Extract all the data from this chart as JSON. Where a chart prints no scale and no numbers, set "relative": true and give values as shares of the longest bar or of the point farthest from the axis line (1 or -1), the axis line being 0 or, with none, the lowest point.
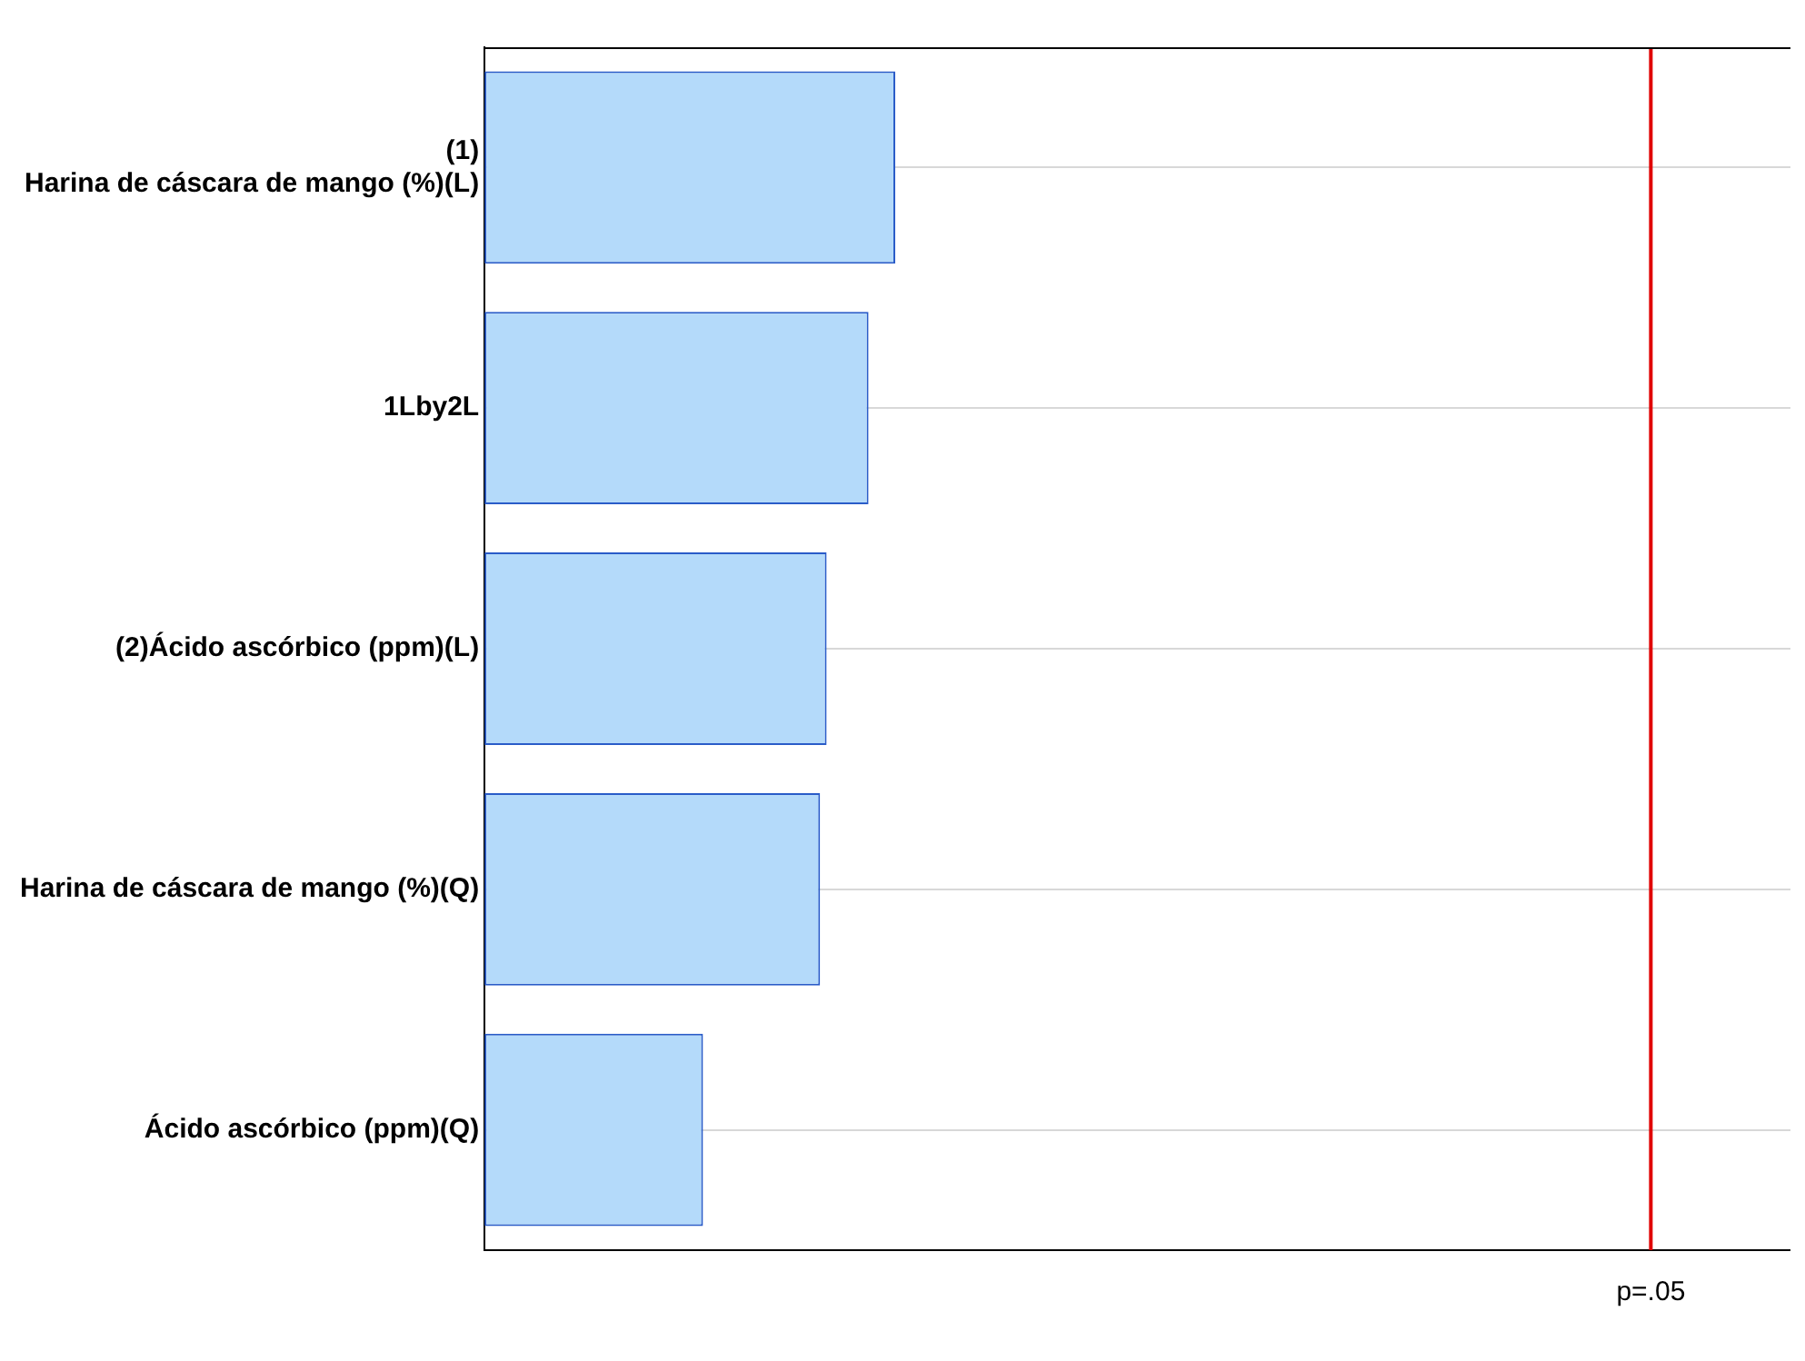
{
  "chart_data": {
    "type": "bar",
    "orientation": "horizontal",
    "relative": true,
    "categories": [
      [
        "(1)",
        "Harina de cáscara de mango (%)(L)"
      ],
      "1Lby2L",
      "(2)Ácido ascórbico (ppm)(L)",
      "Harina de cáscara de mango (%)(Q)",
      "Ácido ascórbico (ppm)(Q)"
    ],
    "values": [
      1,
      0.935,
      0.833,
      0.817,
      0.532
    ],
    "color": "#b4dafa",
    "xlim": [
      0,
      3.18
    ],
    "grid": "y",
    "ref_lines": [
      {
        "axis": "x",
        "value": 2.84,
        "label": "p=.05",
        "color": "#e00000"
      }
    ]
  }
}
